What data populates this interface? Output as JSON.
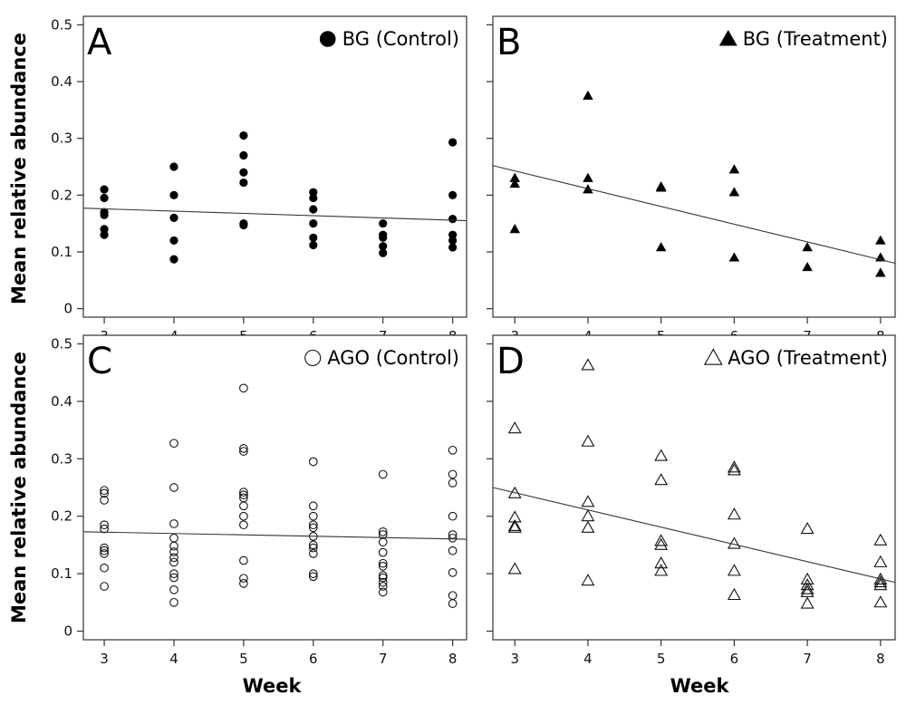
{
  "chart_data": [
    {
      "type": "scatter",
      "panel": "A",
      "legend": "BG (Control)",
      "marker": "filled-circle",
      "xlabel": "",
      "ylabel": "Mean relative abundance",
      "x_ticks": [
        "3",
        "4",
        "5",
        "6",
        "7",
        "8"
      ],
      "y_ticks": [
        "0",
        "0.1",
        "0.2",
        "0.3",
        "0.4",
        "0.5"
      ],
      "xlim": [
        2.7,
        8.2
      ],
      "ylim": [
        -0.015,
        0.515
      ],
      "points": [
        {
          "x": 3,
          "y": 0.21
        },
        {
          "x": 3,
          "y": 0.195
        },
        {
          "x": 3,
          "y": 0.17
        },
        {
          "x": 3,
          "y": 0.165
        },
        {
          "x": 3,
          "y": 0.14
        },
        {
          "x": 3,
          "y": 0.13
        },
        {
          "x": 4,
          "y": 0.25
        },
        {
          "x": 4,
          "y": 0.2
        },
        {
          "x": 4,
          "y": 0.16
        },
        {
          "x": 4,
          "y": 0.12
        },
        {
          "x": 4,
          "y": 0.087
        },
        {
          "x": 5,
          "y": 0.305
        },
        {
          "x": 5,
          "y": 0.27
        },
        {
          "x": 5,
          "y": 0.24
        },
        {
          "x": 5,
          "y": 0.222
        },
        {
          "x": 5,
          "y": 0.15
        },
        {
          "x": 5,
          "y": 0.147
        },
        {
          "x": 6,
          "y": 0.205
        },
        {
          "x": 6,
          "y": 0.195
        },
        {
          "x": 6,
          "y": 0.175
        },
        {
          "x": 6,
          "y": 0.15
        },
        {
          "x": 6,
          "y": 0.125
        },
        {
          "x": 6,
          "y": 0.112
        },
        {
          "x": 7,
          "y": 0.15
        },
        {
          "x": 7,
          "y": 0.13
        },
        {
          "x": 7,
          "y": 0.125
        },
        {
          "x": 7,
          "y": 0.11
        },
        {
          "x": 7,
          "y": 0.098
        },
        {
          "x": 8,
          "y": 0.293
        },
        {
          "x": 8,
          "y": 0.2
        },
        {
          "x": 8,
          "y": 0.158
        },
        {
          "x": 8,
          "y": 0.13
        },
        {
          "x": 8,
          "y": 0.12
        },
        {
          "x": 8,
          "y": 0.108
        }
      ],
      "trend": [
        {
          "x": 2.7,
          "y": 0.177
        },
        {
          "x": 8.2,
          "y": 0.155
        }
      ]
    },
    {
      "type": "scatter",
      "panel": "B",
      "legend": "BG (Treatment)",
      "marker": "filled-triangle",
      "xlabel": "",
      "ylabel": "",
      "x_ticks": [
        "3",
        "4",
        "5",
        "6",
        "7",
        "8"
      ],
      "y_ticks": [],
      "xlim": [
        2.7,
        8.2
      ],
      "ylim": [
        -0.015,
        0.515
      ],
      "points": [
        {
          "x": 3,
          "y": 0.23
        },
        {
          "x": 3,
          "y": 0.22
        },
        {
          "x": 3,
          "y": 0.14
        },
        {
          "x": 4,
          "y": 0.375
        },
        {
          "x": 4,
          "y": 0.23
        },
        {
          "x": 4,
          "y": 0.21
        },
        {
          "x": 5,
          "y": 0.215
        },
        {
          "x": 5,
          "y": 0.213
        },
        {
          "x": 5,
          "y": 0.108
        },
        {
          "x": 6,
          "y": 0.245
        },
        {
          "x": 6,
          "y": 0.205
        },
        {
          "x": 6,
          "y": 0.09
        },
        {
          "x": 7,
          "y": 0.108
        },
        {
          "x": 7,
          "y": 0.073
        },
        {
          "x": 8,
          "y": 0.12
        },
        {
          "x": 8,
          "y": 0.09
        },
        {
          "x": 8,
          "y": 0.063
        }
      ],
      "trend": [
        {
          "x": 2.7,
          "y": 0.252
        },
        {
          "x": 8.2,
          "y": 0.08
        }
      ]
    },
    {
      "type": "scatter",
      "panel": "C",
      "legend": "AGO (Control)",
      "marker": "open-circle",
      "xlabel": "Week",
      "ylabel": "Mean relative abundance",
      "x_ticks": [
        "3",
        "4",
        "5",
        "6",
        "7",
        "8"
      ],
      "y_ticks": [
        "0",
        "0.1",
        "0.2",
        "0.3",
        "0.4",
        "0.5"
      ],
      "xlim": [
        2.7,
        8.2
      ],
      "ylim": [
        -0.015,
        0.515
      ],
      "points": [
        {
          "x": 3,
          "y": 0.245
        },
        {
          "x": 3,
          "y": 0.24
        },
        {
          "x": 3,
          "y": 0.228
        },
        {
          "x": 3,
          "y": 0.185
        },
        {
          "x": 3,
          "y": 0.178
        },
        {
          "x": 3,
          "y": 0.145
        },
        {
          "x": 3,
          "y": 0.14
        },
        {
          "x": 3,
          "y": 0.135
        },
        {
          "x": 3,
          "y": 0.11
        },
        {
          "x": 3,
          "y": 0.078
        },
        {
          "x": 4,
          "y": 0.327
        },
        {
          "x": 4,
          "y": 0.25
        },
        {
          "x": 4,
          "y": 0.187
        },
        {
          "x": 4,
          "y": 0.162
        },
        {
          "x": 4,
          "y": 0.148
        },
        {
          "x": 4,
          "y": 0.138
        },
        {
          "x": 4,
          "y": 0.128
        },
        {
          "x": 4,
          "y": 0.12
        },
        {
          "x": 4,
          "y": 0.1
        },
        {
          "x": 4,
          "y": 0.093
        },
        {
          "x": 4,
          "y": 0.072
        },
        {
          "x": 4,
          "y": 0.05
        },
        {
          "x": 5,
          "y": 0.423
        },
        {
          "x": 5,
          "y": 0.318
        },
        {
          "x": 5,
          "y": 0.313
        },
        {
          "x": 5,
          "y": 0.242
        },
        {
          "x": 5,
          "y": 0.237
        },
        {
          "x": 5,
          "y": 0.232
        },
        {
          "x": 5,
          "y": 0.218
        },
        {
          "x": 5,
          "y": 0.2
        },
        {
          "x": 5,
          "y": 0.185
        },
        {
          "x": 5,
          "y": 0.123
        },
        {
          "x": 5,
          "y": 0.092
        },
        {
          "x": 5,
          "y": 0.083
        },
        {
          "x": 6,
          "y": 0.295
        },
        {
          "x": 6,
          "y": 0.218
        },
        {
          "x": 6,
          "y": 0.2
        },
        {
          "x": 6,
          "y": 0.185
        },
        {
          "x": 6,
          "y": 0.18
        },
        {
          "x": 6,
          "y": 0.165
        },
        {
          "x": 6,
          "y": 0.15
        },
        {
          "x": 6,
          "y": 0.145
        },
        {
          "x": 6,
          "y": 0.135
        },
        {
          "x": 6,
          "y": 0.1
        },
        {
          "x": 6,
          "y": 0.095
        },
        {
          "x": 7,
          "y": 0.273
        },
        {
          "x": 7,
          "y": 0.173
        },
        {
          "x": 7,
          "y": 0.168
        },
        {
          "x": 7,
          "y": 0.155
        },
        {
          "x": 7,
          "y": 0.137
        },
        {
          "x": 7,
          "y": 0.118
        },
        {
          "x": 7,
          "y": 0.113
        },
        {
          "x": 7,
          "y": 0.097
        },
        {
          "x": 7,
          "y": 0.093
        },
        {
          "x": 7,
          "y": 0.085
        },
        {
          "x": 7,
          "y": 0.078
        },
        {
          "x": 7,
          "y": 0.068
        },
        {
          "x": 8,
          "y": 0.315
        },
        {
          "x": 8,
          "y": 0.273
        },
        {
          "x": 8,
          "y": 0.258
        },
        {
          "x": 8,
          "y": 0.2
        },
        {
          "x": 8,
          "y": 0.168
        },
        {
          "x": 8,
          "y": 0.162
        },
        {
          "x": 8,
          "y": 0.14
        },
        {
          "x": 8,
          "y": 0.102
        },
        {
          "x": 8,
          "y": 0.062
        },
        {
          "x": 8,
          "y": 0.048
        }
      ],
      "trend": [
        {
          "x": 2.7,
          "y": 0.173
        },
        {
          "x": 8.2,
          "y": 0.16
        }
      ]
    },
    {
      "type": "scatter",
      "panel": "D",
      "legend": "AGO (Treatment)",
      "marker": "open-triangle",
      "xlabel": "Week",
      "ylabel": "",
      "x_ticks": [
        "3",
        "4",
        "5",
        "6",
        "7",
        "8"
      ],
      "y_ticks": [],
      "xlim": [
        2.7,
        8.2
      ],
      "ylim": [
        -0.015,
        0.515
      ],
      "points": [
        {
          "x": 3,
          "y": 0.353
        },
        {
          "x": 3,
          "y": 0.24
        },
        {
          "x": 3,
          "y": 0.198
        },
        {
          "x": 3,
          "y": 0.183
        },
        {
          "x": 3,
          "y": 0.18
        },
        {
          "x": 3,
          "y": 0.108
        },
        {
          "x": 4,
          "y": 0.463
        },
        {
          "x": 4,
          "y": 0.33
        },
        {
          "x": 4,
          "y": 0.225
        },
        {
          "x": 4,
          "y": 0.2
        },
        {
          "x": 4,
          "y": 0.18
        },
        {
          "x": 4,
          "y": 0.088
        },
        {
          "x": 5,
          "y": 0.305
        },
        {
          "x": 5,
          "y": 0.263
        },
        {
          "x": 5,
          "y": 0.157
        },
        {
          "x": 5,
          "y": 0.15
        },
        {
          "x": 5,
          "y": 0.118
        },
        {
          "x": 5,
          "y": 0.105
        },
        {
          "x": 6,
          "y": 0.285
        },
        {
          "x": 6,
          "y": 0.28
        },
        {
          "x": 6,
          "y": 0.203
        },
        {
          "x": 6,
          "y": 0.152
        },
        {
          "x": 6,
          "y": 0.105
        },
        {
          "x": 6,
          "y": 0.063
        },
        {
          "x": 7,
          "y": 0.178
        },
        {
          "x": 7,
          "y": 0.09
        },
        {
          "x": 7,
          "y": 0.08
        },
        {
          "x": 7,
          "y": 0.073
        },
        {
          "x": 7,
          "y": 0.068
        },
        {
          "x": 7,
          "y": 0.048
        },
        {
          "x": 8,
          "y": 0.158
        },
        {
          "x": 8,
          "y": 0.12
        },
        {
          "x": 8,
          "y": 0.09
        },
        {
          "x": 8,
          "y": 0.085
        },
        {
          "x": 8,
          "y": 0.08
        },
        {
          "x": 8,
          "y": 0.05
        }
      ],
      "trend": [
        {
          "x": 2.7,
          "y": 0.25
        },
        {
          "x": 8.2,
          "y": 0.085
        }
      ]
    }
  ]
}
